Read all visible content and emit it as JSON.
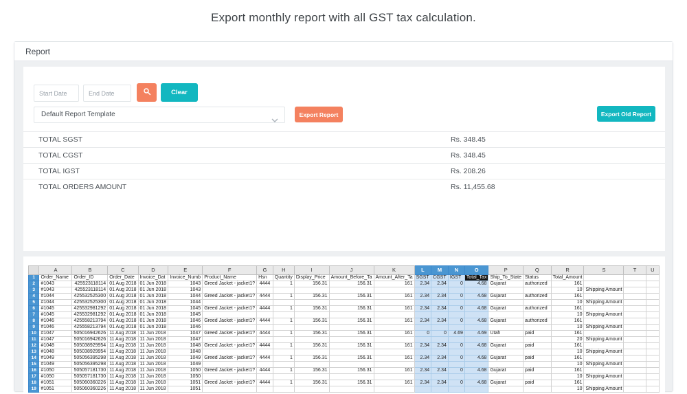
{
  "title": "Export monthly report with all GST tax calculation.",
  "report_panel": {
    "header": "Report"
  },
  "filters": {
    "start_date_placeholder": "Start Date",
    "end_date_placeholder": "End Date",
    "clear_label": "Clear",
    "template_selected": "Default Report Template",
    "export_report_label": "Export Report",
    "export_old_report_label": "Export Old Report",
    "icons": {
      "search": "magnifier-icon",
      "dropdown": "chevron-down-icon"
    }
  },
  "totals": [
    {
      "label": "TOTAL SGST",
      "value": "Rs. 348.45"
    },
    {
      "label": "TOTAL CGST",
      "value": "Rs. 348.45"
    },
    {
      "label": "TOTAL IGST",
      "value": "Rs. 208.26"
    },
    {
      "label": "TOTAL ORDERS AMOUNT",
      "value": "Rs. 11,455.68"
    }
  ],
  "colors": {
    "accent_orange": "#f4815f",
    "accent_teal": "#12b7c0",
    "selection_blue": "#4a96d2",
    "selection_fill": "#cfe2f5",
    "active_cell_bg": "#141414"
  },
  "spreadsheet": {
    "row_header_width": 18,
    "columns": [
      {
        "letter": "A",
        "width": 50,
        "align": "al"
      },
      {
        "letter": "B",
        "width": 46,
        "align": "ar"
      },
      {
        "letter": "C",
        "width": 44,
        "align": "al"
      },
      {
        "letter": "D",
        "width": 44,
        "align": "al"
      },
      {
        "letter": "E",
        "width": 50,
        "align": "ar"
      },
      {
        "letter": "F",
        "width": 75,
        "align": "al"
      },
      {
        "letter": "G",
        "width": 26,
        "align": "ac"
      },
      {
        "letter": "H",
        "width": 27,
        "align": "ar"
      },
      {
        "letter": "I",
        "width": 53,
        "align": "ar"
      },
      {
        "letter": "J",
        "width": 60,
        "align": "ar"
      },
      {
        "letter": "K",
        "width": 58,
        "align": "ar"
      },
      {
        "letter": "L",
        "width": 25,
        "align": "ar"
      },
      {
        "letter": "M",
        "width": 25,
        "align": "ar"
      },
      {
        "letter": "N",
        "width": 26,
        "align": "ar"
      },
      {
        "letter": "O",
        "width": 28,
        "align": "ar"
      },
      {
        "letter": "P",
        "width": 44,
        "align": "al"
      },
      {
        "letter": "Q",
        "width": 43,
        "align": "al"
      },
      {
        "letter": "R",
        "width": 45,
        "align": "ar"
      },
      {
        "letter": "S",
        "width": 55,
        "align": "al"
      },
      {
        "letter": "T",
        "width": 50,
        "align": "al"
      },
      {
        "letter": "U",
        "width": 26,
        "align": "al"
      }
    ],
    "selected_columns": [
      "L",
      "M",
      "N",
      "O"
    ],
    "active_cell": "O1",
    "header_row": {
      "A": "Order_Name",
      "B": "Order_ID",
      "C": "Order_Date",
      "D": "Invoice_Dat",
      "E": "Invoice_Numb",
      "F": "Product_Name",
      "G": "Hsn",
      "H": "Quantity",
      "I": "Display_Price",
      "J": "Amount_Before_Ta",
      "K": "Amount_After_Ta",
      "L": "SGST",
      "M": "CGST",
      "N": "IGST",
      "O": "Total_Tax",
      "P": "Ship_To_State",
      "Q": "Status",
      "R": "Total_Amount"
    },
    "rows": [
      {
        "n": 2,
        "cells": {
          "A": "#1043",
          "B": "425523118114",
          "C": "01 Aug 2018",
          "D": "01 Jun 2018",
          "E": "1043",
          "F": "Greed Jacket - jacket1?",
          "G": "4444",
          "H": "1",
          "I": "156.31",
          "J": "156.31",
          "K": "161",
          "L": "2.34",
          "M": "2.34",
          "N": "0",
          "O": "4.68",
          "P": "Gujarat",
          "Q": "authorized",
          "R": "161"
        }
      },
      {
        "n": 3,
        "cells": {
          "A": "#1043",
          "B": "425523118114",
          "C": "01 Aug 2018",
          "D": "01 Jun 2018",
          "E": "1043",
          "R": "10",
          "S": "Shipping Amount"
        }
      },
      {
        "n": 4,
        "cells": {
          "A": "#1044",
          "B": "425532525300",
          "C": "01 Aug 2018",
          "D": "01 Jun 2018",
          "E": "1044",
          "F": "Greed Jacket - jacket1?",
          "G": "4444",
          "H": "1",
          "I": "156.31",
          "J": "156.31",
          "K": "161",
          "L": "2.34",
          "M": "2.34",
          "N": "0",
          "O": "4.68",
          "P": "Gujarat",
          "Q": "authorized",
          "R": "161"
        }
      },
      {
        "n": 5,
        "cells": {
          "A": "#1044",
          "B": "425532525300",
          "C": "01 Aug 2018",
          "D": "01 Jun 2018",
          "E": "1044",
          "R": "10",
          "S": "Shipping Amount"
        }
      },
      {
        "n": 6,
        "cells": {
          "A": "#1045",
          "B": "425532981292",
          "C": "01 Aug 2018",
          "D": "01 Jun 2018",
          "E": "1045",
          "F": "Greed Jacket - jacket1?",
          "G": "4444",
          "H": "1",
          "I": "156.31",
          "J": "156.31",
          "K": "161",
          "L": "2.34",
          "M": "2.34",
          "N": "0",
          "O": "4.68",
          "P": "Gujarat",
          "Q": "authorized",
          "R": "161"
        }
      },
      {
        "n": 7,
        "cells": {
          "A": "#1045",
          "B": "425532981292",
          "C": "01 Aug 2018",
          "D": "01 Jun 2018",
          "E": "1045",
          "R": "10",
          "S": "Shipping Amount"
        }
      },
      {
        "n": 8,
        "cells": {
          "A": "#1046",
          "B": "425558213794",
          "C": "01 Aug 2018",
          "D": "01 Jun 2018",
          "E": "1046",
          "F": "Greed Jacket - jacket1?",
          "G": "4444",
          "H": "1",
          "I": "156.31",
          "J": "156.31",
          "K": "161",
          "L": "2.34",
          "M": "2.34",
          "N": "0",
          "O": "4.68",
          "P": "Gujarat",
          "Q": "authorized",
          "R": "161"
        }
      },
      {
        "n": 9,
        "cells": {
          "A": "#1046",
          "B": "425558213794",
          "C": "01 Aug 2018",
          "D": "01 Jun 2018",
          "E": "1046",
          "R": "10",
          "S": "Shipping Amount"
        }
      },
      {
        "n": 10,
        "cells": {
          "A": "#1047",
          "B": "505016942626",
          "C": "11 Aug 2018",
          "D": "11 Jun 2018",
          "E": "1047",
          "F": "Greed Jacket - jacket1?",
          "G": "4444",
          "H": "1",
          "I": "156.31",
          "J": "156.31",
          "K": "161",
          "L": "0",
          "M": "0",
          "N": "4.69",
          "O": "4.69",
          "P": "Utah",
          "Q": "paid",
          "R": "161"
        }
      },
      {
        "n": 11,
        "cells": {
          "A": "#1047",
          "B": "505016942626",
          "C": "11 Aug 2018",
          "D": "11 Jun 2018",
          "E": "1047",
          "R": "20",
          "S": "Shipping Amount"
        }
      },
      {
        "n": 12,
        "cells": {
          "A": "#1048",
          "B": "505038929954",
          "C": "11 Aug 2018",
          "D": "11 Jun 2018",
          "E": "1048",
          "F": "Greed Jacket - jacket1?",
          "G": "4444",
          "H": "1",
          "I": "156.31",
          "J": "156.31",
          "K": "161",
          "L": "2.34",
          "M": "2.34",
          "N": "0",
          "O": "4.68",
          "P": "Gujarat",
          "Q": "paid",
          "R": "161"
        }
      },
      {
        "n": 13,
        "cells": {
          "A": "#1048",
          "B": "505038929954",
          "C": "11 Aug 2018",
          "D": "11 Jun 2018",
          "E": "1048",
          "R": "10",
          "S": "Shipping Amount"
        }
      },
      {
        "n": 14,
        "cells": {
          "A": "#1049",
          "B": "505056395298",
          "C": "11 Aug 2018",
          "D": "11 Jun 2018",
          "E": "1049",
          "F": "Greed Jacket - jacket1?",
          "G": "4444",
          "H": "1",
          "I": "156.31",
          "J": "156.31",
          "K": "161",
          "L": "2.34",
          "M": "2.34",
          "N": "0",
          "O": "4.68",
          "P": "Gujarat",
          "Q": "paid",
          "R": "161"
        }
      },
      {
        "n": 15,
        "cells": {
          "A": "#1049",
          "B": "505056395298",
          "C": "11 Aug 2018",
          "D": "11 Jun 2018",
          "E": "1049",
          "R": "10",
          "S": "Shipping Amount"
        }
      },
      {
        "n": 16,
        "cells": {
          "A": "#1050",
          "B": "505057181730",
          "C": "11 Aug 2018",
          "D": "11 Jun 2018",
          "E": "1050",
          "F": "Greed Jacket - jacket1?",
          "G": "4444",
          "H": "1",
          "I": "156.31",
          "J": "156.31",
          "K": "161",
          "L": "2.34",
          "M": "2.34",
          "N": "0",
          "O": "4.68",
          "P": "Gujarat",
          "Q": "paid",
          "R": "161"
        }
      },
      {
        "n": 17,
        "cells": {
          "A": "#1050",
          "B": "505057181730",
          "C": "11 Aug 2018",
          "D": "11 Jun 2018",
          "E": "1050",
          "R": "10",
          "S": "Shipping Amount"
        }
      },
      {
        "n": 18,
        "cells": {
          "A": "#1051",
          "B": "505060360226",
          "C": "11 Aug 2018",
          "D": "11 Jun 2018",
          "E": "1051",
          "F": "Greed Jacket - jacket1?",
          "G": "4444",
          "H": "1",
          "I": "156.31",
          "J": "156.31",
          "K": "161",
          "L": "2.34",
          "M": "2.34",
          "N": "0",
          "O": "4.68",
          "P": "Gujarat",
          "Q": "paid",
          "R": "161"
        }
      },
      {
        "n": 19,
        "cells": {
          "A": "#1051",
          "B": "505060360226",
          "C": "11 Aug 2018",
          "D": "11 Jun 2018",
          "E": "1051",
          "R": "10",
          "S": "Shipping Amount"
        }
      }
    ]
  }
}
